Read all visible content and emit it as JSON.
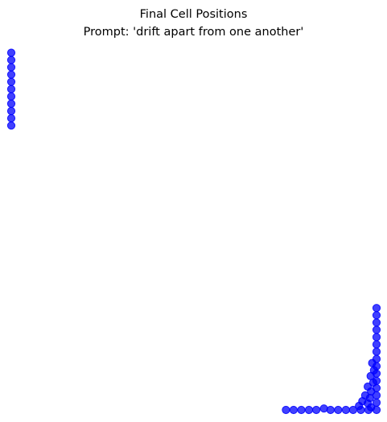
{
  "chart_data": {
    "type": "scatter",
    "title": "Final Cell Positions",
    "subtitle": "Prompt: 'drift apart from one another'",
    "xlabel": "",
    "ylabel": "",
    "xlim": [
      0,
      100
    ],
    "ylim": [
      0,
      100
    ],
    "axes_visible": false,
    "grid": false,
    "legend": "none",
    "marker_color": "#0000ff",
    "series": [
      {
        "points": [
          [
            0.0,
            98.1
          ],
          [
            0.0,
            96.1
          ],
          [
            0.0,
            94.1
          ],
          [
            0.0,
            92.1
          ],
          [
            0.0,
            90.1
          ],
          [
            0.0,
            88.1
          ],
          [
            0.0,
            86.1
          ],
          [
            0.0,
            84.1
          ],
          [
            0.0,
            82.1
          ],
          [
            0.0,
            80.1
          ],
          [
            0.0,
            78.1
          ],
          [
            100.0,
            28.0
          ],
          [
            100.0,
            26.0
          ],
          [
            100.0,
            24.0
          ],
          [
            100.0,
            22.0
          ],
          [
            100.0,
            20.0
          ],
          [
            100.0,
            18.0
          ],
          [
            100.0,
            16.0
          ],
          [
            100.0,
            14.0
          ],
          [
            100.0,
            12.0
          ],
          [
            100.0,
            10.0
          ],
          [
            100.0,
            8.0
          ],
          [
            100.0,
            6.0
          ],
          [
            100.0,
            4.0
          ],
          [
            100.0,
            2.0
          ],
          [
            100.0,
            0.0
          ],
          [
            98.8,
            12.9
          ],
          [
            99.3,
            10.9
          ],
          [
            98.4,
            9.3
          ],
          [
            99.1,
            7.5
          ],
          [
            97.6,
            6.4
          ],
          [
            98.5,
            5.1
          ],
          [
            96.9,
            4.0
          ],
          [
            98.2,
            3.3
          ],
          [
            96.1,
            2.4
          ],
          [
            97.6,
            1.8
          ],
          [
            95.2,
            1.1
          ],
          [
            98.5,
            0.7
          ],
          [
            75.2,
            0.0
          ],
          [
            77.3,
            0.0
          ],
          [
            79.4,
            0.0
          ],
          [
            81.5,
            0.0
          ],
          [
            83.5,
            0.0
          ],
          [
            85.6,
            0.4
          ],
          [
            87.4,
            0.0
          ],
          [
            89.5,
            0.0
          ],
          [
            91.6,
            0.0
          ],
          [
            93.6,
            0.0
          ],
          [
            95.7,
            0.0
          ],
          [
            97.8,
            0.0
          ]
        ]
      }
    ]
  }
}
